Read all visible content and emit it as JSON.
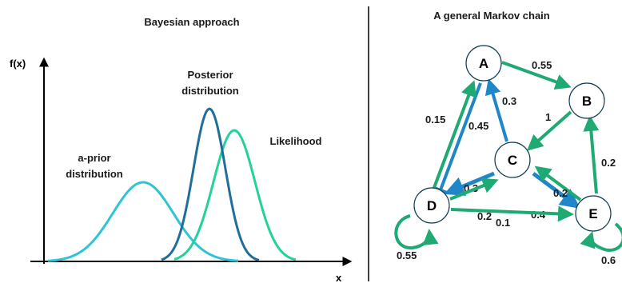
{
  "left_panel": {
    "title": "Bayesian approach",
    "y_axis_label": "f(x)",
    "x_axis_label": "x",
    "curves": [
      {
        "label_line1": "a-prior",
        "label_line2": "distribution",
        "color": "#2ec4d6"
      },
      {
        "label_line1": "Posterior",
        "label_line2": "distribution",
        "color": "#1f6e9c"
      },
      {
        "label_line1": "Likelihood",
        "label_line2": "",
        "color": "#23d19a"
      }
    ]
  },
  "right_panel": {
    "title": "A general Markov chain",
    "nodes": [
      "A",
      "B",
      "C",
      "D",
      "E"
    ],
    "edges": [
      {
        "from": "A",
        "to": "B",
        "prob": "0.55"
      },
      {
        "from": "C",
        "to": "A",
        "prob": "0.3"
      },
      {
        "from": "A",
        "to": "D",
        "prob": "0.45"
      },
      {
        "from": "D",
        "to": "A",
        "prob": "0.15"
      },
      {
        "from": "B",
        "to": "C",
        "prob": "1"
      },
      {
        "from": "C",
        "to": "D",
        "prob": "0.3"
      },
      {
        "from": "D",
        "to": "C",
        "prob": "0.2"
      },
      {
        "from": "C",
        "to": "E",
        "prob": "0.4"
      },
      {
        "from": "E",
        "to": "C",
        "prob": "0.2"
      },
      {
        "from": "E",
        "to": "B",
        "prob": "0.2"
      },
      {
        "from": "D",
        "to": "E",
        "prob": "0.1"
      },
      {
        "from": "D",
        "to": "D",
        "prob": "0.55"
      },
      {
        "from": "E",
        "to": "E",
        "prob": "0.6"
      }
    ],
    "colors": {
      "blue": "#1f86c8",
      "green": "#1faa73",
      "outline": "#0d3b50"
    }
  }
}
